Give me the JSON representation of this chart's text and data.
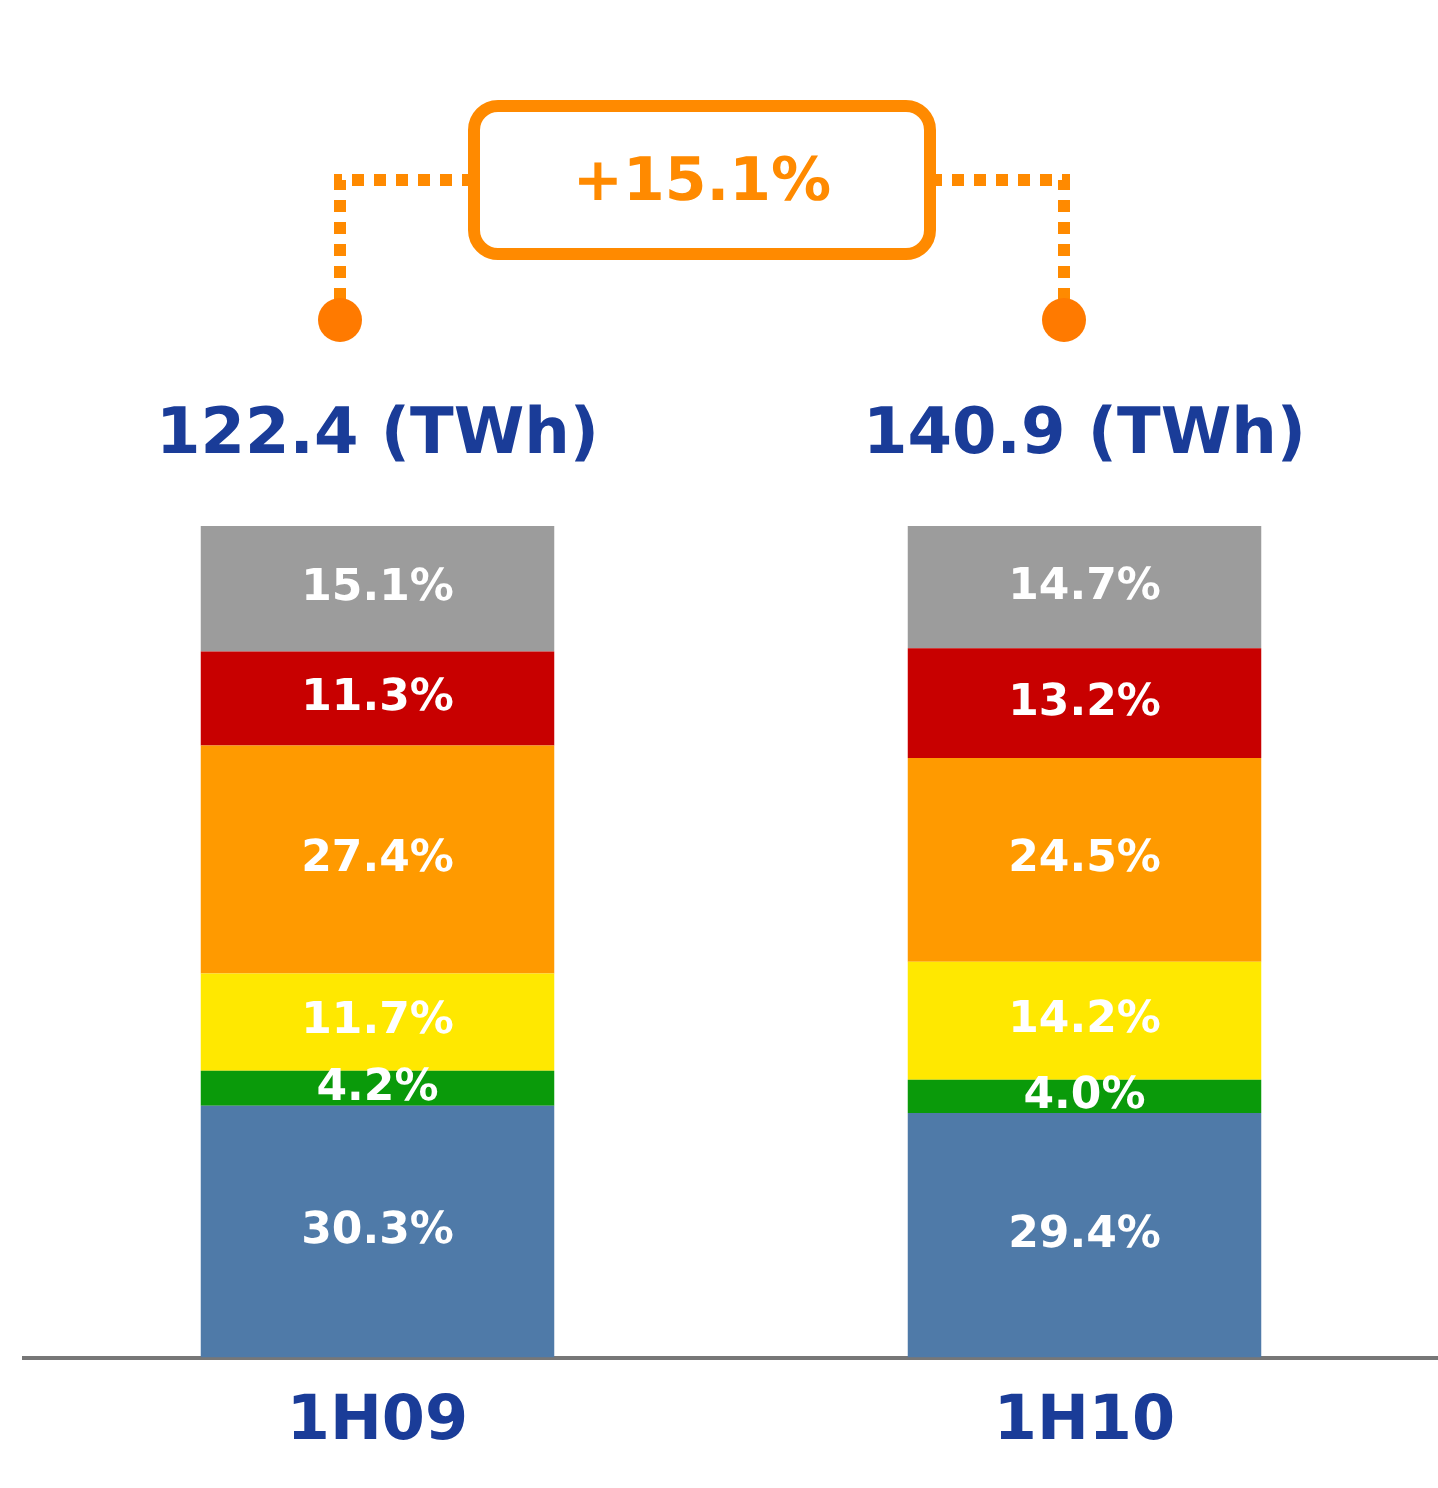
{
  "chart_data": {
    "type": "bar",
    "stacked": true,
    "categories": [
      "1H09",
      "1H10"
    ],
    "series": [
      {
        "color": "#4f7aa8",
        "values": [
          30.3,
          29.4
        ],
        "value_labels": [
          "30.3%",
          "29.4%"
        ]
      },
      {
        "color": "#0a9a0a",
        "values": [
          4.2,
          4.0
        ],
        "value_labels": [
          "4.2%",
          "4.0%"
        ]
      },
      {
        "color": "#ffe800",
        "values": [
          11.7,
          14.2
        ],
        "value_labels": [
          "11.7%",
          "14.2%"
        ]
      },
      {
        "color": "#ff9a00",
        "values": [
          27.4,
          24.5
        ],
        "value_labels": [
          "27.4%",
          "24.5%"
        ]
      },
      {
        "color": "#c80000",
        "values": [
          11.3,
          13.2
        ],
        "value_labels": [
          "11.3%",
          "13.2%"
        ]
      },
      {
        "color": "#9c9c9c",
        "values": [
          15.1,
          14.7
        ],
        "value_labels": [
          "15.1%",
          "14.7%"
        ]
      }
    ],
    "annotations": [
      "+15.1%",
      {
        "text": "122.4 (TWh)",
        "x": "1H09",
        "y": 100
      },
      {
        "text": "140.9 (TWh)",
        "x": "1H10",
        "y": 100
      }
    ],
    "grid": false,
    "legend": false
  }
}
